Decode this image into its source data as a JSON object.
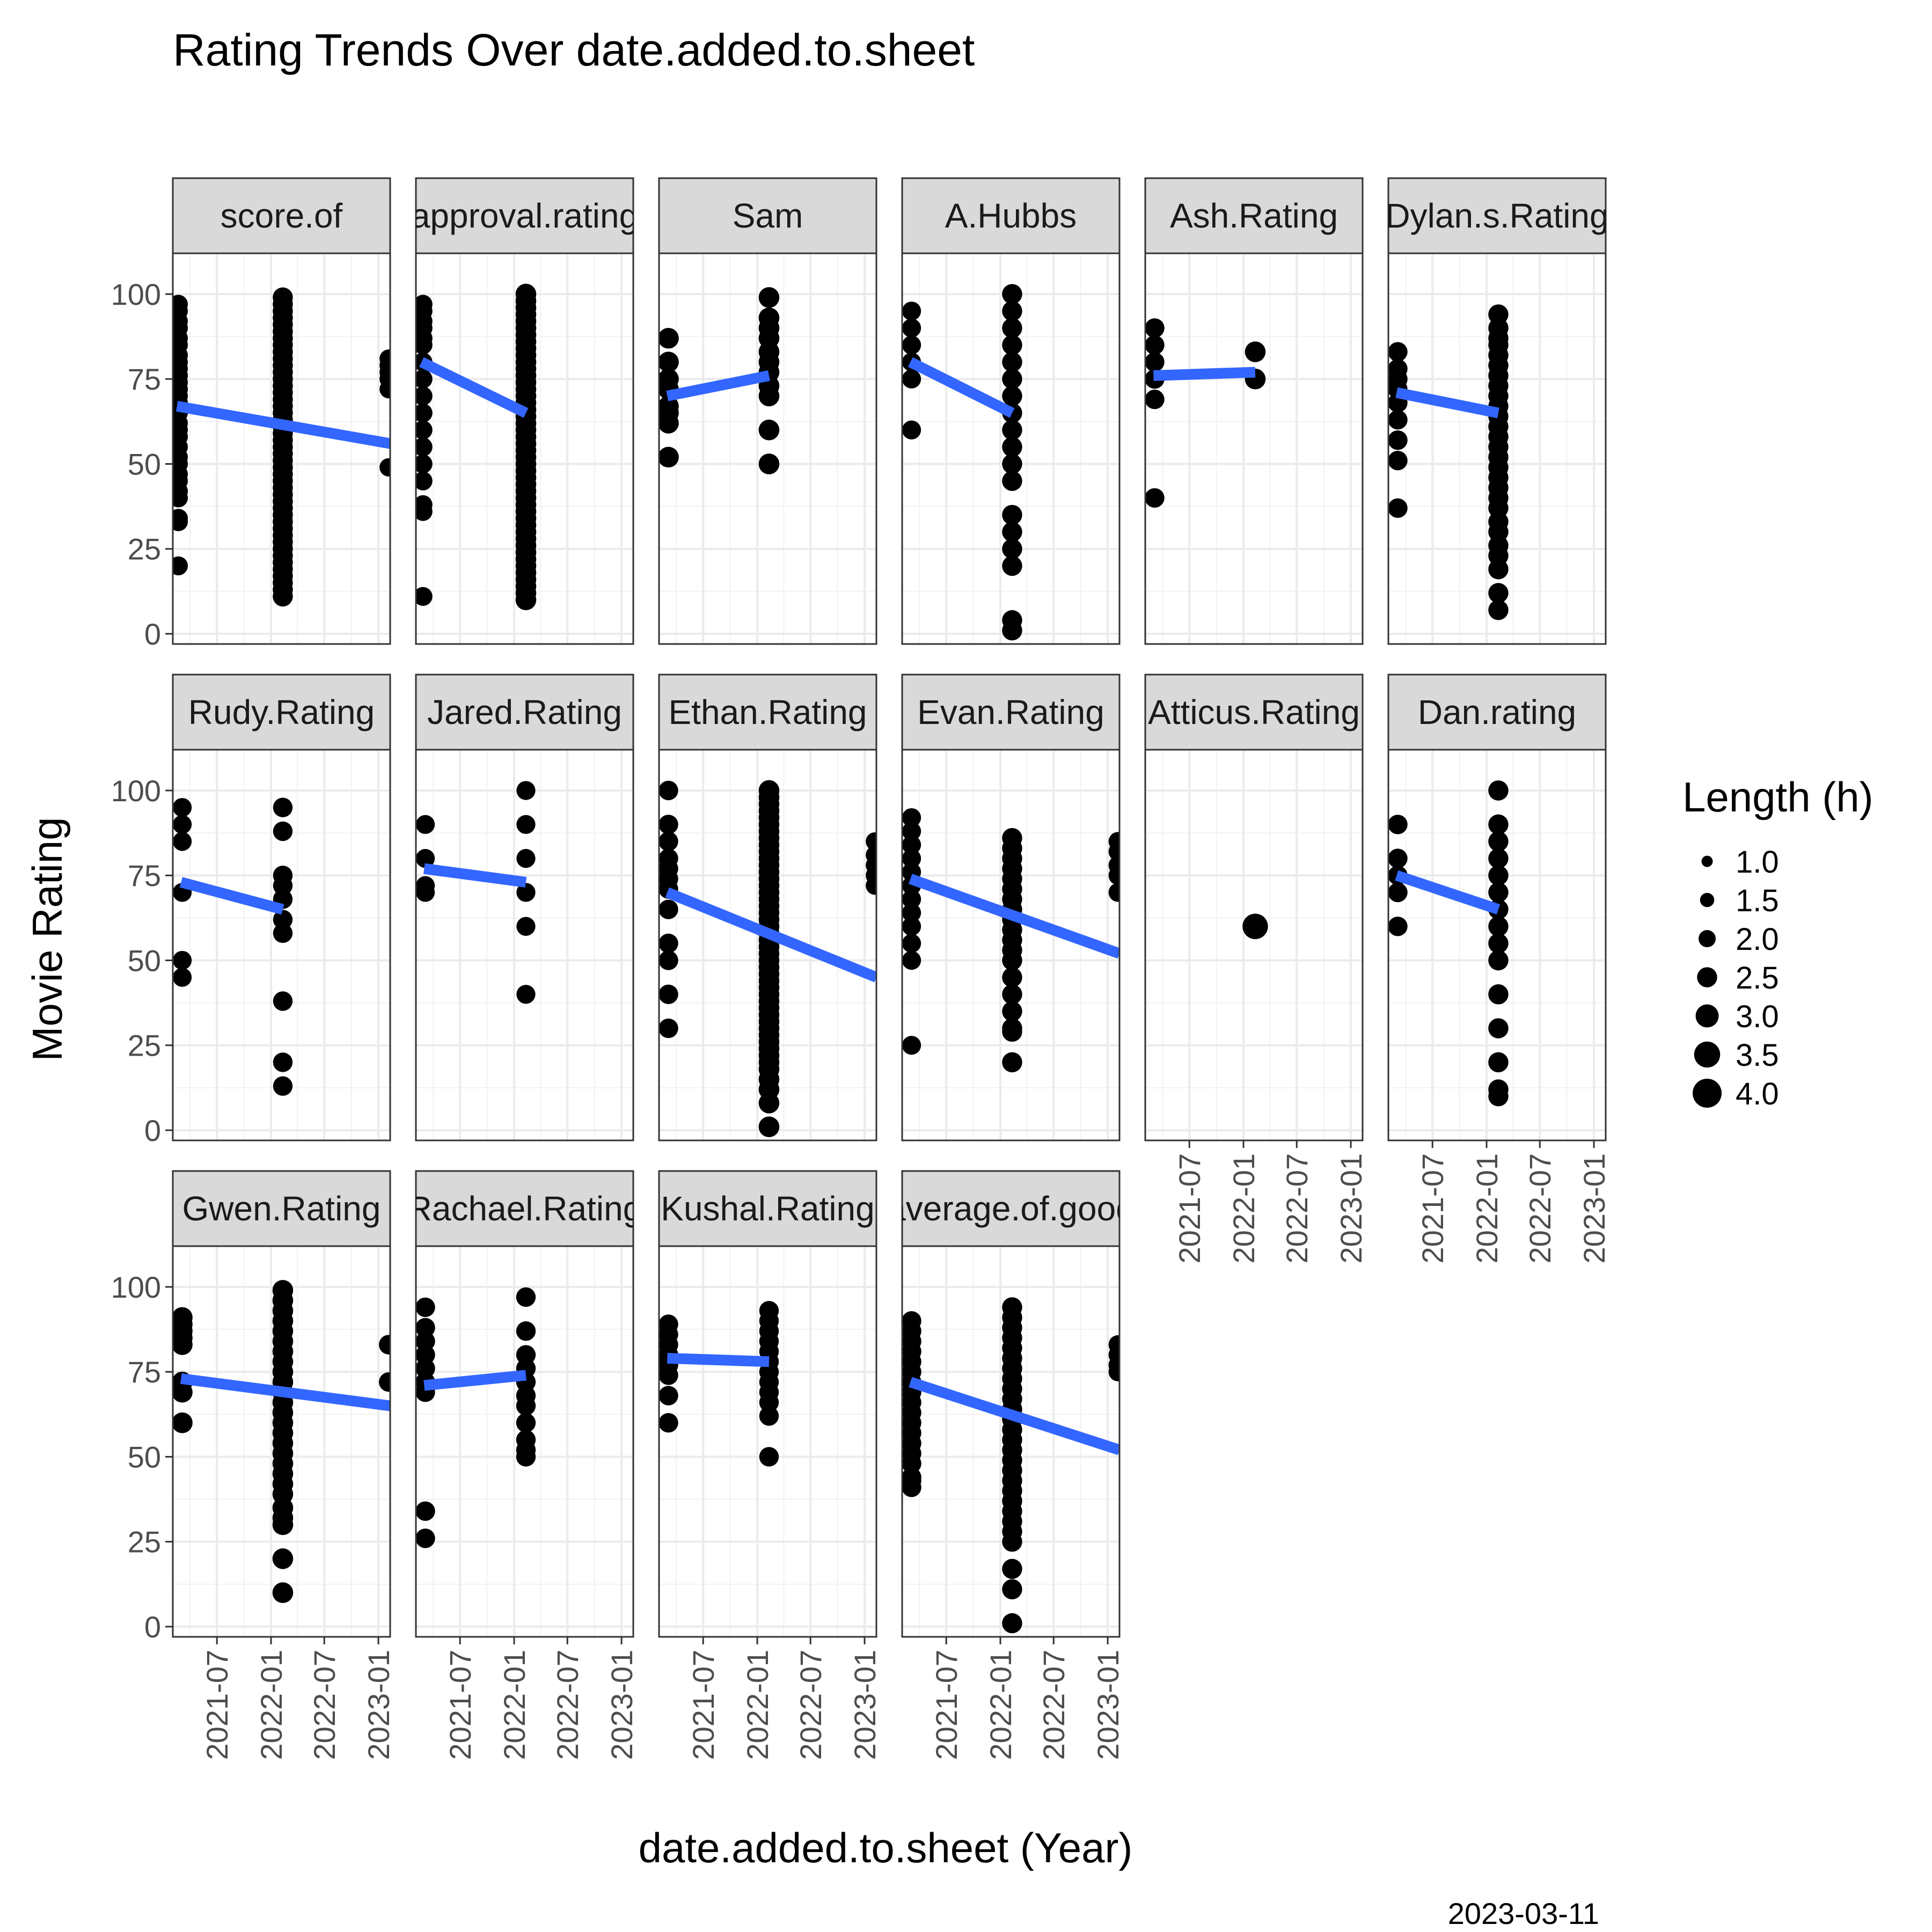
{
  "chart_data": {
    "type": "scatter",
    "title": "Rating Trends Over date.added.to.sheet",
    "xlabel": "date.added.to.sheet (Year)",
    "ylabel": "Movie Rating",
    "caption": "2023-03-11",
    "x_ticks": [
      "2021-07",
      "2022-01",
      "2022-07",
      "2023-01"
    ],
    "y_ticks": [
      0,
      25,
      50,
      75,
      100
    ],
    "x_range": [
      "2021-02-01",
      "2023-02-10"
    ],
    "y_range": [
      -3,
      112
    ],
    "grid": true,
    "legend": {
      "title": "Length (h)",
      "position": "right",
      "entries": [
        "1.0",
        "1.5",
        "2.0",
        "2.5",
        "3.0",
        "3.5",
        "4.0"
      ],
      "sizes": [
        1.0,
        1.5,
        2.0,
        2.5,
        3.0,
        3.5,
        4.0
      ]
    },
    "trend_color": "#3366FF",
    "point_color": "#000000",
    "panels": [
      {
        "label": "score.of",
        "trend": [
          [
            "2021-02-15",
            67
          ],
          [
            "2023-02-10",
            56
          ]
        ],
        "clusters": [
          {
            "x": "2021-02-20",
            "y": [
              97,
              95,
              92,
              90,
              87,
              85,
              82,
              80,
              78,
              76,
              74,
              72,
              70,
              68,
              65,
              62,
              60,
              58,
              55,
              52,
              50,
              47,
              45,
              42,
              40,
              34,
              33,
              20
            ],
            "size": 2.3
          },
          {
            "x": "2022-02-10",
            "y": [
              99,
              97,
              95,
              93,
              91,
              89,
              87,
              85,
              83,
              81,
              79,
              77,
              75,
              73,
              71,
              69,
              67,
              65,
              63,
              61,
              59,
              57,
              55,
              53,
              51,
              49,
              47,
              45,
              43,
              41,
              39,
              37,
              35,
              33,
              31,
              29,
              27,
              25,
              23,
              21,
              19,
              17,
              15,
              13,
              11
            ],
            "size": 2.5
          },
          {
            "x": "2023-02-05",
            "y": [
              81,
              79,
              77,
              75,
              72,
              49
            ],
            "size": 2.2
          }
        ]
      },
      {
        "label": "approval.rating",
        "trend": [
          [
            "2021-02-20",
            80
          ],
          [
            "2022-02-10",
            65
          ]
        ],
        "clusters": [
          {
            "x": "2021-02-25",
            "y": [
              97,
              95,
              92,
              90,
              87,
              85,
              80,
              75,
              70,
              65,
              60,
              55,
              50,
              45,
              38,
              36,
              11
            ],
            "size": 2.3
          },
          {
            "x": "2022-02-10",
            "y": [
              100,
              98,
              96,
              94,
              92,
              90,
              88,
              86,
              84,
              82,
              80,
              78,
              76,
              74,
              72,
              70,
              68,
              66,
              64,
              62,
              60,
              58,
              56,
              54,
              52,
              50,
              48,
              46,
              44,
              42,
              40,
              38,
              36,
              34,
              32,
              30,
              28,
              26,
              24,
              22,
              20,
              18,
              16,
              14,
              12,
              10
            ],
            "size": 2.6
          }
        ]
      },
      {
        "label": "Sam",
        "trend": [
          [
            "2021-03-01",
            70
          ],
          [
            "2022-02-10",
            76
          ]
        ],
        "clusters": [
          {
            "x": "2021-03-05",
            "y": [
              87,
              80,
              75,
              72,
              67,
              65,
              62,
              52
            ],
            "size": 2.6
          },
          {
            "x": "2022-02-10",
            "y": [
              99,
              93,
              90,
              87,
              83,
              80,
              77,
              73,
              70,
              60,
              50
            ],
            "size": 2.6
          }
        ]
      },
      {
        "label": "A.Hubbs",
        "trend": [
          [
            "2021-03-01",
            80
          ],
          [
            "2022-02-10",
            65
          ]
        ],
        "clusters": [
          {
            "x": "2021-03-05",
            "y": [
              95,
              90,
              85,
              80,
              75,
              60
            ],
            "size": 2.3
          },
          {
            "x": "2022-02-10",
            "y": [
              100,
              95,
              90,
              85,
              80,
              75,
              70,
              65,
              60,
              55,
              50,
              45,
              35,
              30,
              25,
              20,
              4,
              1
            ],
            "size": 2.5
          }
        ]
      },
      {
        "label": "Ash.Rating",
        "trend": [
          [
            "2021-03-01",
            76
          ],
          [
            "2022-02-10",
            77
          ]
        ],
        "clusters": [
          {
            "x": "2021-03-05",
            "y": [
              90,
              85,
              80,
              75,
              69,
              40
            ],
            "size": 2.4
          },
          {
            "x": "2022-02-10",
            "y": [
              83,
              75
            ],
            "size": 2.6
          }
        ]
      },
      {
        "label": "Dylan.s.Rating",
        "trend": [
          [
            "2021-03-01",
            71
          ],
          [
            "2022-02-10",
            65
          ]
        ],
        "clusters": [
          {
            "x": "2021-03-05",
            "y": [
              83,
              78,
              75,
              72,
              68,
              63,
              57,
              51,
              37
            ],
            "size": 2.4
          },
          {
            "x": "2022-02-10",
            "y": [
              94,
              90,
              87,
              85,
              82,
              79,
              76,
              73,
              70,
              67,
              64,
              61,
              58,
              55,
              52,
              49,
              46,
              43,
              40,
              37,
              33,
              30,
              26,
              23,
              19,
              12,
              7
            ],
            "size": 2.5
          }
        ]
      },
      {
        "label": "Rudy.Rating",
        "trend": [
          [
            "2021-03-01",
            73
          ],
          [
            "2022-02-10",
            65
          ]
        ],
        "clusters": [
          {
            "x": "2021-03-05",
            "y": [
              95,
              90,
              85,
              70,
              50,
              45
            ],
            "size": 2.3
          },
          {
            "x": "2022-02-10",
            "y": [
              95,
              88,
              75,
              72,
              68,
              62,
              58,
              38,
              20,
              13
            ],
            "size": 2.4
          }
        ]
      },
      {
        "label": "Jared.Rating",
        "trend": [
          [
            "2021-03-01",
            77
          ],
          [
            "2022-02-10",
            73
          ]
        ],
        "clusters": [
          {
            "x": "2021-03-05",
            "y": [
              90,
              80,
              72,
              70
            ],
            "size": 2.3
          },
          {
            "x": "2022-02-10",
            "y": [
              100,
              90,
              80,
              70,
              60,
              40
            ],
            "size": 2.3
          }
        ]
      },
      {
        "label": "Ethan.Rating",
        "trend": [
          [
            "2021-03-01",
            70
          ],
          [
            "2023-02-10",
            45
          ]
        ],
        "clusters": [
          {
            "x": "2021-03-05",
            "y": [
              100,
              90,
              85,
              80,
              77,
              74,
              71,
              65,
              55,
              50,
              40,
              30
            ],
            "size": 2.4
          },
          {
            "x": "2022-02-10",
            "y": [
              100,
              98,
              96,
              94,
              92,
              90,
              88,
              86,
              84,
              82,
              80,
              78,
              76,
              74,
              72,
              70,
              68,
              66,
              64,
              62,
              60,
              58,
              56,
              54,
              52,
              50,
              48,
              46,
              44,
              42,
              40,
              38,
              36,
              34,
              32,
              30,
              28,
              26,
              24,
              22,
              20,
              18,
              15,
              12,
              8,
              1
            ],
            "size": 2.6
          },
          {
            "x": "2023-02-05",
            "y": [
              85,
              81,
              78,
              75,
              72
            ],
            "size": 2.2
          }
        ]
      },
      {
        "label": "Evan.Rating",
        "trend": [
          [
            "2021-03-01",
            74
          ],
          [
            "2023-02-10",
            52
          ]
        ],
        "clusters": [
          {
            "x": "2021-03-05",
            "y": [
              92,
              88,
              84,
              80,
              76,
              72,
              68,
              64,
              60,
              55,
              50,
              25
            ],
            "size": 2.3
          },
          {
            "x": "2022-02-10",
            "y": [
              86,
              83,
              80,
              77,
              74,
              71,
              68,
              65,
              62,
              59,
              56,
              53,
              50,
              45,
              40,
              35,
              30,
              29,
              20
            ],
            "size": 2.5
          },
          {
            "x": "2023-02-05",
            "y": [
              85,
              82,
              78,
              75,
              70
            ],
            "size": 2.3
          }
        ]
      },
      {
        "label": "Atticus.Rating",
        "trend": [],
        "clusters": [
          {
            "x": "2022-02-10",
            "y": [
              60
            ],
            "size": 3.4
          }
        ]
      },
      {
        "label": "Dan.rating",
        "trend": [
          [
            "2021-03-01",
            75
          ],
          [
            "2022-02-10",
            65
          ]
        ],
        "clusters": [
          {
            "x": "2021-03-05",
            "y": [
              90,
              80,
              75,
              70,
              60
            ],
            "size": 2.4
          },
          {
            "x": "2022-02-10",
            "y": [
              100,
              90,
              85,
              80,
              75,
              70,
              65,
              60,
              55,
              50,
              40,
              30,
              20,
              12,
              10
            ],
            "size": 2.5
          }
        ]
      },
      {
        "label": "Gwen.Rating",
        "trend": [
          [
            "2021-03-01",
            73
          ],
          [
            "2023-02-10",
            65
          ]
        ],
        "clusters": [
          {
            "x": "2021-03-05",
            "y": [
              91,
              89,
              87,
              85,
              83,
              72,
              69,
              60
            ],
            "size": 2.6
          },
          {
            "x": "2022-02-10",
            "y": [
              99,
              96,
              93,
              90,
              87,
              84,
              81,
              78,
              75,
              72,
              69,
              66,
              63,
              60,
              57,
              54,
              51,
              48,
              45,
              42,
              39,
              35,
              32,
              30,
              20,
              10
            ],
            "size": 2.6
          },
          {
            "x": "2023-02-05",
            "y": [
              83,
              72
            ],
            "size": 2.4
          }
        ]
      },
      {
        "label": "Rachael.Rating",
        "trend": [
          [
            "2021-03-01",
            71
          ],
          [
            "2022-02-10",
            74
          ]
        ],
        "clusters": [
          {
            "x": "2021-03-05",
            "y": [
              94,
              88,
              84,
              80,
              76,
              72,
              69,
              34,
              26
            ],
            "size": 2.4
          },
          {
            "x": "2022-02-10",
            "y": [
              97,
              87,
              80,
              76,
              72,
              68,
              65,
              60,
              55,
              52,
              50
            ],
            "size": 2.4
          }
        ]
      },
      {
        "label": "Kushal.Rating",
        "trend": [
          [
            "2021-03-01",
            79
          ],
          [
            "2022-02-10",
            78
          ]
        ],
        "clusters": [
          {
            "x": "2021-03-05",
            "y": [
              89,
              86,
              83,
              80,
              77,
              74,
              68,
              60
            ],
            "size": 2.4
          },
          {
            "x": "2022-02-10",
            "y": [
              93,
              90,
              87,
              84,
              81,
              78,
              75,
              72,
              69,
              66,
              62,
              50
            ],
            "size": 2.4
          }
        ]
      },
      {
        "label": "average.of.good",
        "trend": [
          [
            "2021-03-01",
            72
          ],
          [
            "2023-02-10",
            52
          ]
        ],
        "clusters": [
          {
            "x": "2021-03-05",
            "y": [
              90,
              87,
              84,
              81,
              78,
              75,
              72,
              69,
              66,
              63,
              60,
              57,
              54,
              51,
              48,
              44,
              43,
              41
            ],
            "size": 2.4
          },
          {
            "x": "2022-02-10",
            "y": [
              94,
              91,
              88,
              85,
              82,
              79,
              76,
              73,
              70,
              67,
              64,
              61,
              58,
              55,
              52,
              49,
              46,
              43,
              40,
              37,
              34,
              31,
              28,
              25,
              17,
              11,
              1
            ],
            "size": 2.5
          },
          {
            "x": "2023-02-05",
            "y": [
              83,
              80,
              77,
              75
            ],
            "size": 2.3
          }
        ]
      }
    ]
  }
}
